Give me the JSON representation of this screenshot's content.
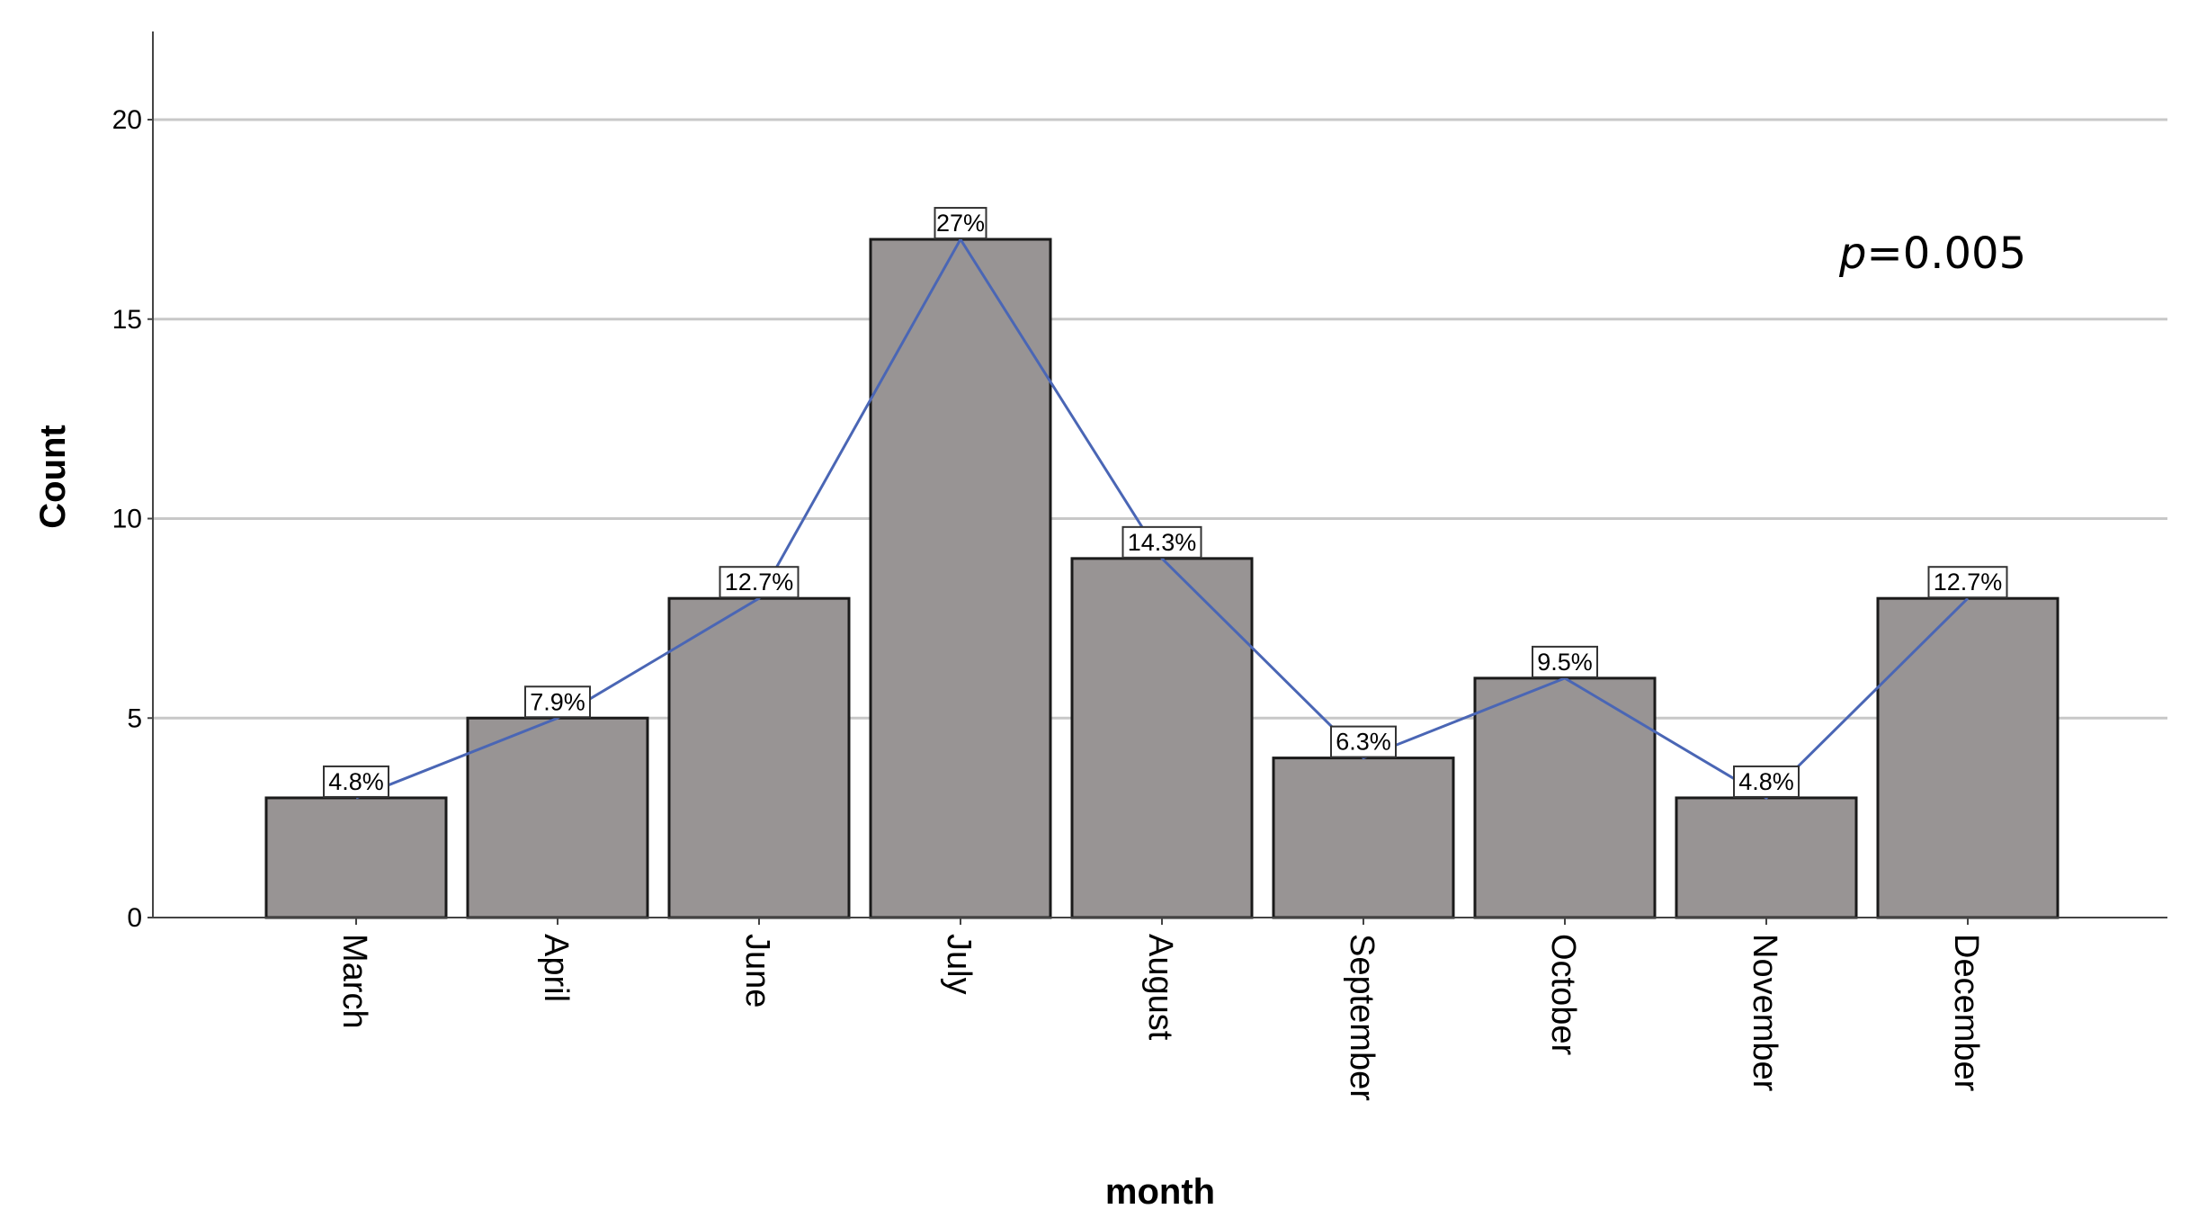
{
  "chart_data": {
    "type": "bar",
    "xlabel": "month",
    "ylabel": "Count",
    "categories": [
      "March",
      "April",
      "June",
      "July",
      "August",
      "September",
      "October",
      "November",
      "December"
    ],
    "values": [
      3,
      5,
      8,
      17,
      9,
      4,
      6,
      3,
      8
    ],
    "data_labels": [
      "4.8%",
      "7.9%",
      "12.7%",
      "27%",
      "14.3%",
      "6.3%",
      "9.5%",
      "4.8%",
      "12.7%"
    ],
    "yticks": [
      0,
      5,
      10,
      15,
      20
    ],
    "ylim": [
      0,
      22
    ],
    "grid": true,
    "overlay_line": true,
    "annotation": {
      "italic": "p",
      "text": "=0.005"
    },
    "colors": {
      "bar": "#989494",
      "bar_edge": "#1a1a1a",
      "line": "#4a66b5",
      "grid": "#c8c8c8"
    }
  }
}
